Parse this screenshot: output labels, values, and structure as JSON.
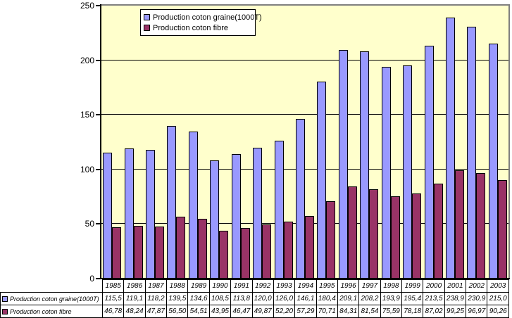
{
  "chart_data": {
    "type": "bar",
    "title": "",
    "xlabel": "",
    "ylabel": "",
    "categories": [
      "1985",
      "1986",
      "1987",
      "1988",
      "1989",
      "1990",
      "1991",
      "1992",
      "1993",
      "1994",
      "1995",
      "1996",
      "1997",
      "1998",
      "1999",
      "2000",
      "2001",
      "2002",
      "2003"
    ],
    "series": [
      {
        "name": "Production coton graine(1000T)",
        "color": "#9999FF",
        "values": [
          115.5,
          119.1,
          118.2,
          139.5,
          134.6,
          108.5,
          113.8,
          120.0,
          126.0,
          146.1,
          180.4,
          209.1,
          208.2,
          193.9,
          195.4,
          213.5,
          238.9,
          230.9,
          215.0
        ],
        "display": [
          "115,5",
          "119,1",
          "118,2",
          "139,5",
          "134,6",
          "108,5",
          "113,8",
          "120,0",
          "126,0",
          "146,1",
          "180,4",
          "209,1",
          "208,2",
          "193,9",
          "195,4",
          "213,5",
          "238,9",
          "230,9",
          "215,0"
        ]
      },
      {
        "name": "Production coton fibre",
        "color": "#993366",
        "values": [
          46.78,
          48.24,
          47.87,
          56.5,
          54.51,
          43.95,
          46.47,
          49.87,
          52.2,
          57.29,
          70.71,
          84.31,
          81.54,
          75.59,
          78.18,
          87.02,
          99.25,
          96.97,
          90.26
        ],
        "display": [
          "46,78",
          "48,24",
          "47,87",
          "56,50",
          "54,51",
          "43,95",
          "46,47",
          "49,87",
          "52,20",
          "57,29",
          "70,71",
          "84,31",
          "81,54",
          "75,59",
          "78,18",
          "87,02",
          "99,25",
          "96,97",
          "90,26"
        ]
      }
    ],
    "ylim": [
      0,
      250
    ],
    "yticks": [
      0,
      50,
      100,
      150,
      200,
      250
    ],
    "ytick_labels": [
      "0",
      "50",
      "100",
      "150",
      "200",
      "250"
    ],
    "grid": true,
    "legend_position": "inside-top",
    "colors": {
      "plot_background": "#FFFFCC",
      "plot_border": "#808080",
      "axis": "#000000",
      "gridline": "#000000",
      "series_graine": "#9999FF",
      "series_fibre": "#993366",
      "legend_background": "#FFFFFF",
      "table_border": "#000000"
    }
  }
}
